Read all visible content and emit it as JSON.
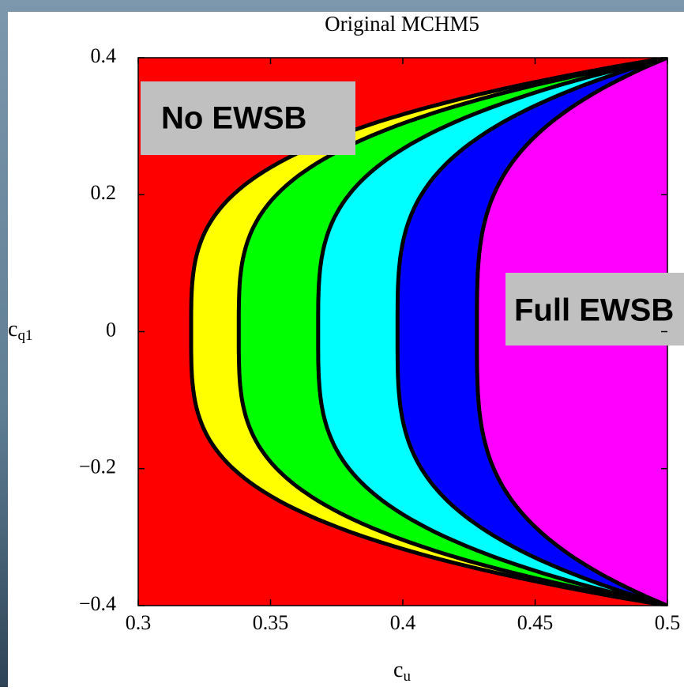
{
  "chart_data": {
    "type": "region",
    "title": "Original MCHM5",
    "xlabel": {
      "base": "c",
      "sub": "u"
    },
    "ylabel": {
      "base": "c",
      "sub": "q1"
    },
    "xlim": [
      0.3,
      0.5
    ],
    "ylim": [
      -0.4,
      0.4
    ],
    "xticks": [
      0.3,
      0.35,
      0.4,
      0.45,
      0.5
    ],
    "yticks": [
      {
        "value": -0.4,
        "label": "−0.4"
      },
      {
        "value": -0.2,
        "label": "−0.2"
      },
      0,
      0.2,
      0.4
    ],
    "boundaries": [
      0.32,
      0.338,
      0.368,
      0.398,
      0.428
    ],
    "region_colors": [
      "#ff0000",
      "#ffff00",
      "#00ff00",
      "#00ffff",
      "#0000ff",
      "#ff00ff"
    ],
    "annotations": [
      "No EWSB",
      "Full EWSB"
    ]
  }
}
